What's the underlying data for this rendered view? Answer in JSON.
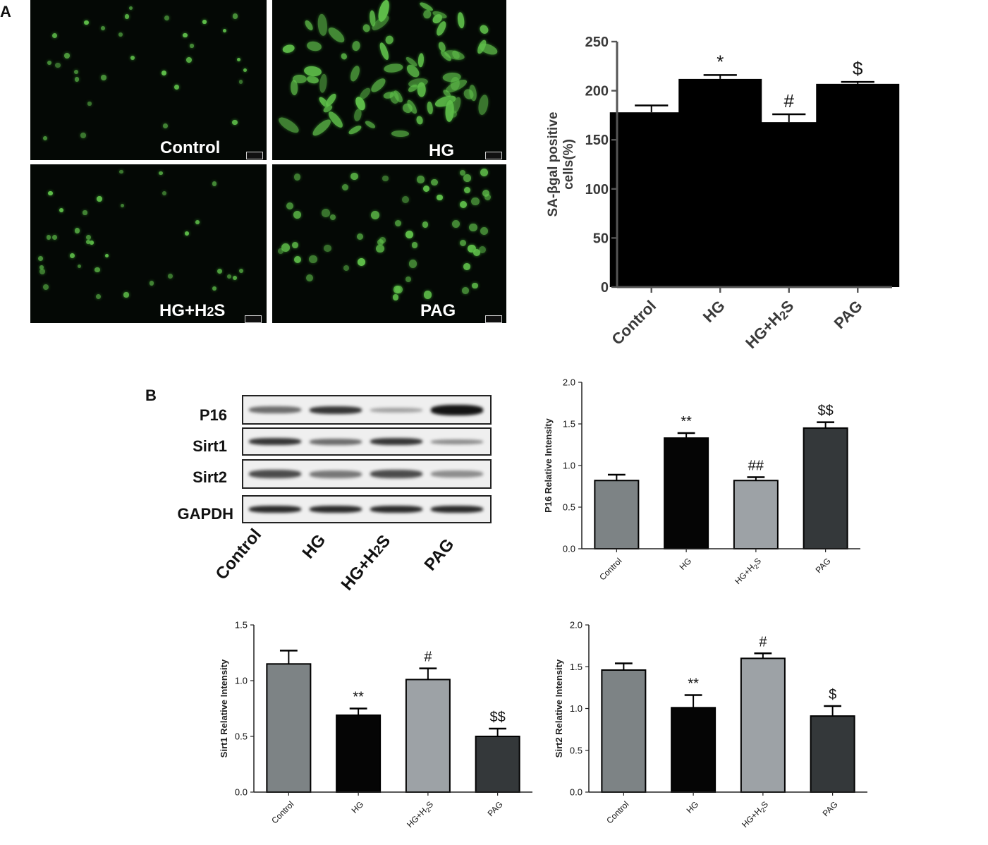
{
  "panels": {
    "A": "A",
    "B": "B"
  },
  "micrographs": [
    {
      "label": "Control"
    },
    {
      "label": "HG"
    },
    {
      "label": "HG+H2S"
    },
    {
      "label": "PAG"
    }
  ],
  "blot": {
    "rows": [
      "P16",
      "Sirt1",
      "Sirt2",
      "GAPDH"
    ],
    "lanes": [
      "Control",
      "HG",
      "HG+H2S",
      "PAG"
    ]
  },
  "chart_data": [
    {
      "type": "bar",
      "id": "sa-bgal",
      "categories": [
        "Control",
        "HG",
        "HG+H2S",
        "PAG"
      ],
      "values": [
        178,
        212,
        168,
        207
      ],
      "errors": [
        7,
        4,
        8,
        2
      ],
      "annotations": [
        "",
        "*",
        "#",
        "$"
      ],
      "ylabel": "SA-βgal positive cells(%)",
      "ylim": [
        0,
        250
      ],
      "yticks": [
        "0",
        "50",
        "100",
        "150",
        "200",
        "250"
      ],
      "colors": [
        "#000000",
        "#000000",
        "#000000",
        "#000000"
      ]
    },
    {
      "type": "bar",
      "id": "p16",
      "categories": [
        "Control",
        "HG",
        "HG+H2S",
        "PAG"
      ],
      "values": [
        0.82,
        1.33,
        0.82,
        1.45
      ],
      "errors": [
        0.07,
        0.06,
        0.04,
        0.07
      ],
      "annotations": [
        "",
        "**",
        "##",
        "$$"
      ],
      "ylabel": "P16 Relative Intensity",
      "ylim": [
        0,
        2.0
      ],
      "yticks": [
        "0.0",
        "0.5",
        "1.0",
        "1.5",
        "2.0"
      ],
      "colors": [
        "#7d8385",
        "#050505",
        "#9da2a6",
        "#34383a"
      ]
    },
    {
      "type": "bar",
      "id": "sirt1",
      "categories": [
        "Control",
        "HG",
        "HG+H2S",
        "PAG"
      ],
      "values": [
        1.15,
        0.69,
        1.01,
        0.5
      ],
      "errors": [
        0.12,
        0.06,
        0.1,
        0.07
      ],
      "annotations": [
        "",
        "**",
        "#",
        "$$"
      ],
      "ylabel": "Sirt1 Relative Intensity",
      "ylim": [
        0,
        1.5
      ],
      "yticks": [
        "0.0",
        "0.5",
        "1.0",
        "1.5"
      ],
      "colors": [
        "#7d8385",
        "#050505",
        "#9da2a6",
        "#34383a"
      ]
    },
    {
      "type": "bar",
      "id": "sirt2",
      "categories": [
        "Control",
        "HG",
        "HG+H2S",
        "PAG"
      ],
      "values": [
        1.46,
        1.01,
        1.6,
        0.91
      ],
      "errors": [
        0.08,
        0.15,
        0.06,
        0.12
      ],
      "annotations": [
        "",
        "**",
        "#",
        "$"
      ],
      "ylabel": "Sirt2 Relative Intensity",
      "ylim": [
        0,
        2.0
      ],
      "yticks": [
        "0.0",
        "0.5",
        "1.0",
        "1.5",
        "2.0"
      ],
      "colors": [
        "#7d8385",
        "#050505",
        "#9da2a6",
        "#34383a"
      ]
    }
  ]
}
